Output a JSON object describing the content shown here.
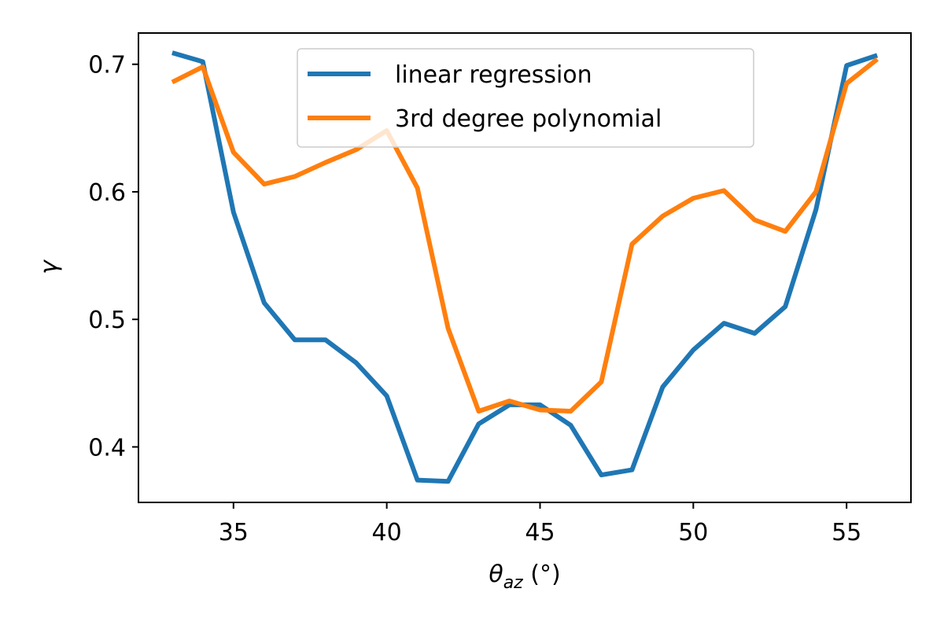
{
  "chart_data": {
    "type": "line",
    "title": "",
    "xlabel_main": "θ",
    "xlabel_sub": "az",
    "xlabel_unit": " (°)",
    "ylabel": "γ",
    "xlim": [
      31.9,
      57.1
    ],
    "ylim": [
      0.3565,
      0.7245
    ],
    "x_ticks": [
      35,
      40,
      45,
      50,
      55
    ],
    "y_ticks": [
      0.4,
      0.5,
      0.6,
      0.7
    ],
    "x_tick_labels": [
      "35",
      "40",
      "45",
      "50",
      "55"
    ],
    "y_tick_labels": [
      "0.4",
      "0.5",
      "0.6",
      "0.7"
    ],
    "legend_position": "upper-center",
    "grid": false,
    "x": [
      33,
      34,
      35,
      36,
      37,
      38,
      39,
      40,
      41,
      42,
      43,
      44,
      45,
      46,
      47,
      48,
      49,
      50,
      51,
      52,
      53,
      54,
      55,
      56
    ],
    "series": [
      {
        "name": "linear regression",
        "color": "#1f77b4",
        "values": [
          0.709,
          0.702,
          0.584,
          0.513,
          0.484,
          0.484,
          0.466,
          0.44,
          0.374,
          0.373,
          0.418,
          0.433,
          0.433,
          0.417,
          0.378,
          0.382,
          0.447,
          0.476,
          0.497,
          0.489,
          0.51,
          0.586,
          0.699,
          0.707
        ]
      },
      {
        "name": "3rd degree polynomial",
        "color": "#ff7f0e",
        "values": [
          0.686,
          0.698,
          0.631,
          0.606,
          0.612,
          0.623,
          0.633,
          0.648,
          0.603,
          0.493,
          0.428,
          0.436,
          0.429,
          0.428,
          0.451,
          0.559,
          0.581,
          0.595,
          0.601,
          0.578,
          0.569,
          0.6,
          0.685,
          0.704
        ]
      }
    ]
  }
}
